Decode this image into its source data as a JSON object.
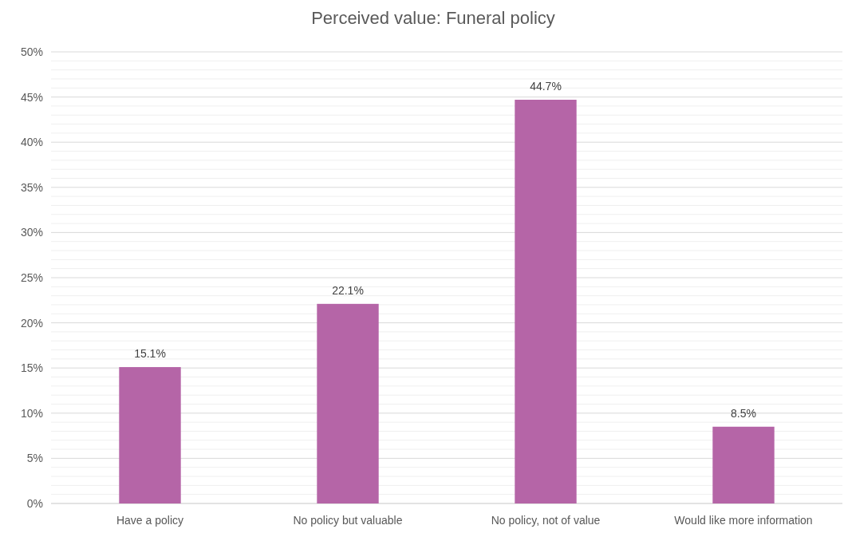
{
  "chart_data": {
    "type": "bar",
    "title": "Perceived value: Funeral policy",
    "categories": [
      "Have a policy",
      "No policy but valuable",
      "No policy, not of value",
      "Would like more information"
    ],
    "values": [
      15.1,
      22.1,
      44.7,
      8.5
    ],
    "color": "#b565a7",
    "value_labels": [
      "15.1%",
      "22.1%",
      "44.7%",
      "8.5%"
    ],
    "ylim": [
      0,
      50
    ],
    "yticks": [
      {
        "value": 0,
        "label": "0%"
      },
      {
        "value": 1,
        "label": null
      },
      {
        "value": 2,
        "label": null
      },
      {
        "value": 3,
        "label": null
      },
      {
        "value": 4,
        "label": null
      },
      {
        "value": 5,
        "label": "5%"
      },
      {
        "value": 6,
        "label": null
      },
      {
        "value": 7,
        "label": null
      },
      {
        "value": 8,
        "label": null
      },
      {
        "value": 9,
        "label": null
      },
      {
        "value": 10,
        "label": "10%"
      },
      {
        "value": 11,
        "label": null
      },
      {
        "value": 12,
        "label": null
      },
      {
        "value": 13,
        "label": null
      },
      {
        "value": 14,
        "label": null
      },
      {
        "value": 15,
        "label": "15%"
      },
      {
        "value": 16,
        "label": null
      },
      {
        "value": 17,
        "label": null
      },
      {
        "value": 18,
        "label": null
      },
      {
        "value": 19,
        "label": null
      },
      {
        "value": 20,
        "label": "20%"
      },
      {
        "value": 21,
        "label": null
      },
      {
        "value": 22,
        "label": null
      },
      {
        "value": 23,
        "label": null
      },
      {
        "value": 24,
        "label": null
      },
      {
        "value": 25,
        "label": "25%"
      },
      {
        "value": 26,
        "label": null
      },
      {
        "value": 27,
        "label": null
      },
      {
        "value": 28,
        "label": null
      },
      {
        "value": 29,
        "label": null
      },
      {
        "value": 30,
        "label": "30%"
      },
      {
        "value": 31,
        "label": null
      },
      {
        "value": 32,
        "label": null
      },
      {
        "value": 33,
        "label": null
      },
      {
        "value": 34,
        "label": null
      },
      {
        "value": 35,
        "label": "35%"
      },
      {
        "value": 36,
        "label": null
      },
      {
        "value": 37,
        "label": null
      },
      {
        "value": 38,
        "label": null
      },
      {
        "value": 39,
        "label": null
      },
      {
        "value": 40,
        "label": "40%"
      },
      {
        "value": 41,
        "label": null
      },
      {
        "value": 42,
        "label": null
      },
      {
        "value": 43,
        "label": null
      },
      {
        "value": 44,
        "label": null
      },
      {
        "value": 45,
        "label": "45%"
      },
      {
        "value": 46,
        "label": null
      },
      {
        "value": 47,
        "label": null
      },
      {
        "value": 48,
        "label": null
      },
      {
        "value": 49,
        "label": null
      },
      {
        "value": 50,
        "label": "50%"
      }
    ],
    "grid": "y"
  }
}
